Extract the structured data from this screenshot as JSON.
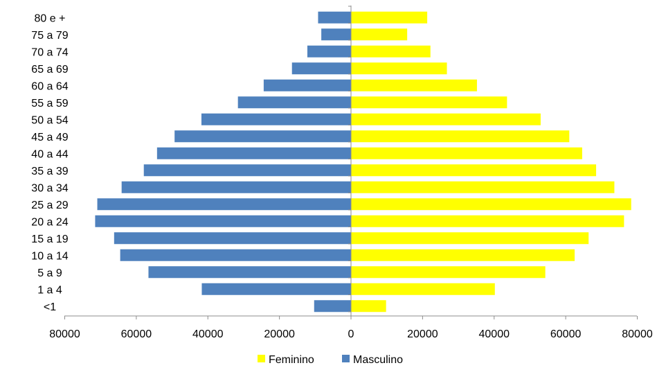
{
  "chart_data": {
    "type": "bar",
    "orientation": "horizontal",
    "layout": "population-pyramid",
    "categories": [
      "<1",
      "1 a 4",
      "5 a 9",
      "10 a 14",
      "15 a 19",
      "20 a 24",
      "25 a 29",
      "30 a 34",
      "35 a 39",
      "40 a 44",
      "45 a 49",
      "50 a 54",
      "55 a 59",
      "60 a 64",
      "65 a 69",
      "70 a 74",
      "75 a 79",
      "80 e +"
    ],
    "series": [
      {
        "name": "Feminino",
        "color": "#FFFF00",
        "side": "right",
        "values": [
          9800,
          40200,
          54300,
          62500,
          66400,
          76300,
          78300,
          73600,
          68500,
          64600,
          61000,
          53000,
          43600,
          35200,
          26800,
          22200,
          15700,
          21300
        ]
      },
      {
        "name": "Masculino",
        "color": "#4F81BD",
        "side": "left",
        "values": [
          10300,
          41700,
          56600,
          64500,
          66200,
          71500,
          70900,
          64100,
          57900,
          54200,
          49300,
          41800,
          31600,
          24400,
          16500,
          12200,
          8300,
          9200
        ]
      }
    ],
    "xlim": [
      -80000,
      80000
    ],
    "x_ticks": [
      -80000,
      -60000,
      -40000,
      -20000,
      0,
      20000,
      40000,
      60000,
      80000
    ],
    "x_tick_labels": [
      "80000",
      "60000",
      "40000",
      "20000",
      "0",
      "20000",
      "40000",
      "60000",
      "80000"
    ],
    "title": "",
    "xlabel": "",
    "ylabel": "",
    "grid": false,
    "legend": {
      "placement": "bottom",
      "entries": [
        "Feminino",
        "Masculino"
      ]
    }
  }
}
